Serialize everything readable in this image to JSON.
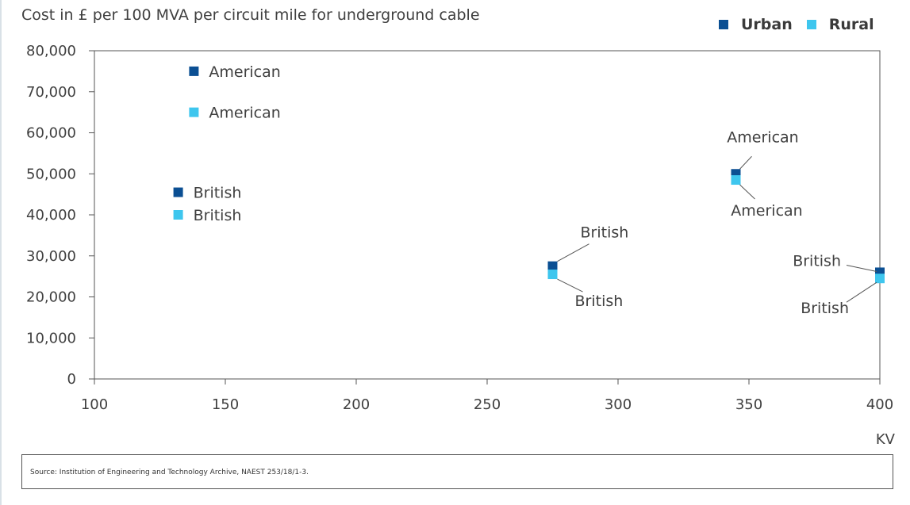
{
  "chart_data": {
    "type": "scatter",
    "title": "Cost in £ per 100 MVA per circuit mile for underground cable",
    "xlabel": "KV",
    "ylabel": "",
    "xlim": [
      100,
      400
    ],
    "ylim": [
      0,
      80000
    ],
    "x_ticks": [
      "100",
      "150",
      "200",
      "250",
      "300",
      "350",
      "400"
    ],
    "x_tick_values": [
      100,
      150,
      200,
      250,
      300,
      350,
      400
    ],
    "y_ticks": [
      "0",
      "10,000",
      "20,000",
      "30,000",
      "40,000",
      "50,000",
      "60,000",
      "70,000",
      "80,000"
    ],
    "y_tick_values": [
      0,
      10000,
      20000,
      30000,
      40000,
      50000,
      60000,
      70000,
      80000
    ],
    "grid": false,
    "legend_position": "top-right",
    "series": [
      {
        "name": "Urban",
        "color": "#0b4f93",
        "points": [
          {
            "x": 138,
            "y": 75000,
            "label": "American"
          },
          {
            "x": 132,
            "y": 45500,
            "label": "British"
          },
          {
            "x": 275,
            "y": 27500,
            "label": "British"
          },
          {
            "x": 345,
            "y": 50000,
            "label": "American"
          },
          {
            "x": 400,
            "y": 26000,
            "label": "British"
          }
        ]
      },
      {
        "name": "Rural",
        "color": "#3ec6ee",
        "points": [
          {
            "x": 138,
            "y": 65000,
            "label": "American"
          },
          {
            "x": 132,
            "y": 40000,
            "label": "British"
          },
          {
            "x": 275,
            "y": 25500,
            "label": "British"
          },
          {
            "x": 345,
            "y": 48500,
            "label": "American"
          },
          {
            "x": 400,
            "y": 24500,
            "label": "British"
          }
        ]
      }
    ]
  },
  "source": "Source: Institution of Engineering and Technology Archive, NAEST 253/18/1-3."
}
